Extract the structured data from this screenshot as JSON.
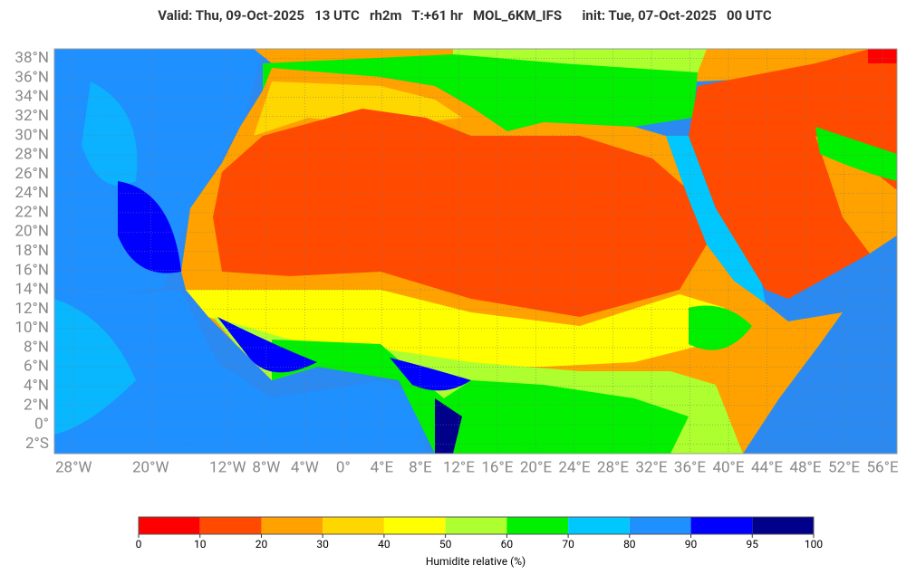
{
  "header": {
    "title": "Valid: Thu, 09-Oct-2025   13 UTC   rh2m   T:+61 hr   MOL_6KM_IFS      init: Tue, 07-Oct-2025   00 UTC"
  },
  "map": {
    "lonlim": [
      -30,
      57.5
    ],
    "latlim": [
      -3,
      39
    ],
    "lat_labels": [
      {
        "value": 38,
        "label": "38°N"
      },
      {
        "value": 36,
        "label": "36°N"
      },
      {
        "value": 34,
        "label": "34°N"
      },
      {
        "value": 32,
        "label": "32°N"
      },
      {
        "value": 30,
        "label": "30°N"
      },
      {
        "value": 28,
        "label": "28°N"
      },
      {
        "value": 26,
        "label": "26°N"
      },
      {
        "value": 24,
        "label": "24°N"
      },
      {
        "value": 22,
        "label": "22°N"
      },
      {
        "value": 20,
        "label": "20°N"
      },
      {
        "value": 18,
        "label": "18°N"
      },
      {
        "value": 16,
        "label": "16°N"
      },
      {
        "value": 14,
        "label": "14°N"
      },
      {
        "value": 12,
        "label": "12°N"
      },
      {
        "value": 10,
        "label": "10°N"
      },
      {
        "value": 8,
        "label": "8°N"
      },
      {
        "value": 6,
        "label": "6°N"
      },
      {
        "value": 4,
        "label": "4°N"
      },
      {
        "value": 2,
        "label": "2°N"
      },
      {
        "value": 0,
        "label": "0°"
      },
      {
        "value": -2,
        "label": "2°S"
      }
    ],
    "lon_labels": [
      {
        "value": -28,
        "label": "28°W"
      },
      {
        "value": -20,
        "label": "20°W"
      },
      {
        "value": -12,
        "label": "12°W"
      },
      {
        "value": -8,
        "label": "8°W"
      },
      {
        "value": -4,
        "label": "4°W"
      },
      {
        "value": 0,
        "label": "0°"
      },
      {
        "value": 4,
        "label": "4°E"
      },
      {
        "value": 8,
        "label": "8°E"
      },
      {
        "value": 12,
        "label": "12°E"
      },
      {
        "value": 16,
        "label": "16°E"
      },
      {
        "value": 20,
        "label": "20°E"
      },
      {
        "value": 24,
        "label": "24°E"
      },
      {
        "value": 28,
        "label": "28°E"
      },
      {
        "value": 32,
        "label": "32°E"
      },
      {
        "value": 36,
        "label": "36°E"
      },
      {
        "value": 40,
        "label": "40°E"
      },
      {
        "value": 44,
        "label": "44°E"
      },
      {
        "value": 48,
        "label": "48°E"
      },
      {
        "value": 52,
        "label": "52°E"
      },
      {
        "value": 56,
        "label": "56°E"
      }
    ]
  },
  "colorbar": {
    "label": "Humidite relative (%)",
    "ticks": [
      0,
      10,
      20,
      30,
      40,
      50,
      60,
      70,
      80,
      90,
      95,
      100
    ],
    "colors": [
      "#ff0000",
      "#ff4a00",
      "#ffa200",
      "#ffd700",
      "#ffff00",
      "#adff2f",
      "#00f000",
      "#00c8ff",
      "#1e90ff",
      "#0000ff",
      "#00008b"
    ]
  }
}
